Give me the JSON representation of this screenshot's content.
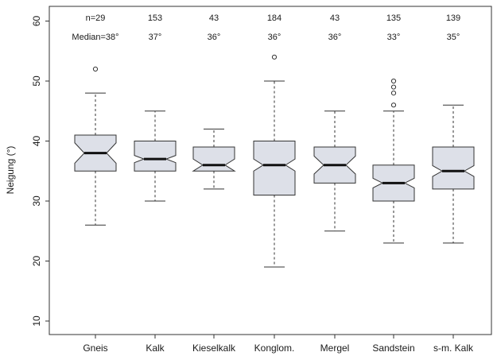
{
  "chart_data": {
    "type": "boxplot",
    "notched": true,
    "title": "",
    "xlabel": "",
    "ylabel": "Neigung (°)",
    "ylim": [
      7,
      62
    ],
    "yticks": [
      "10",
      "20",
      "30",
      "40",
      "50",
      "60"
    ],
    "categories": [
      "Gneis",
      "Kalk",
      "Kieselkalk",
      "Konglom.",
      "Mergel",
      "Sandstein",
      "s-m. Kalk"
    ],
    "counts": [
      "n=29",
      "153",
      "43",
      "184",
      "43",
      "135",
      "139"
    ],
    "medians_label": [
      "Median=38°",
      "37°",
      "36°",
      "36°",
      "36°",
      "33°",
      "35°"
    ],
    "series": [
      {
        "category": "Gneis",
        "whisker_low": 26,
        "q1": 35,
        "median": 38,
        "q3": 41,
        "whisker_high": 48,
        "notch_low": 36.3,
        "notch_high": 39.7,
        "outliers": [
          52
        ]
      },
      {
        "category": "Kalk",
        "whisker_low": 30,
        "q1": 35,
        "median": 37,
        "q3": 40,
        "whisker_high": 45,
        "notch_low": 36.4,
        "notch_high": 37.6,
        "outliers": []
      },
      {
        "category": "Kieselkalk",
        "whisker_low": 32,
        "q1": 35,
        "median": 36,
        "q3": 39,
        "whisker_high": 42,
        "notch_low": 35.0,
        "notch_high": 37.0,
        "outliers": []
      },
      {
        "category": "Konglom.",
        "whisker_low": 19,
        "q1": 31,
        "median": 36,
        "q3": 40,
        "whisker_high": 50,
        "notch_low": 35.0,
        "notch_high": 37.0,
        "outliers": [
          54
        ]
      },
      {
        "category": "Mergel",
        "whisker_low": 25,
        "q1": 33,
        "median": 36,
        "q3": 39,
        "whisker_high": 45,
        "notch_low": 34.5,
        "notch_high": 37.5,
        "outliers": []
      },
      {
        "category": "Sandstein",
        "whisker_low": 23,
        "q1": 30,
        "median": 33,
        "q3": 36,
        "whisker_high": 45,
        "notch_low": 32.2,
        "notch_high": 33.8,
        "outliers": [
          46,
          48,
          49,
          50
        ]
      },
      {
        "category": "s-m. Kalk",
        "whisker_low": 23,
        "q1": 32,
        "median": 35,
        "q3": 39,
        "whisker_high": 46,
        "notch_low": 34.1,
        "notch_high": 35.9,
        "outliers": []
      }
    ],
    "colors": {
      "box_fill": "#dde0e8",
      "stroke": "#333333",
      "median": "#111111"
    },
    "grid": false,
    "legend": "none"
  }
}
